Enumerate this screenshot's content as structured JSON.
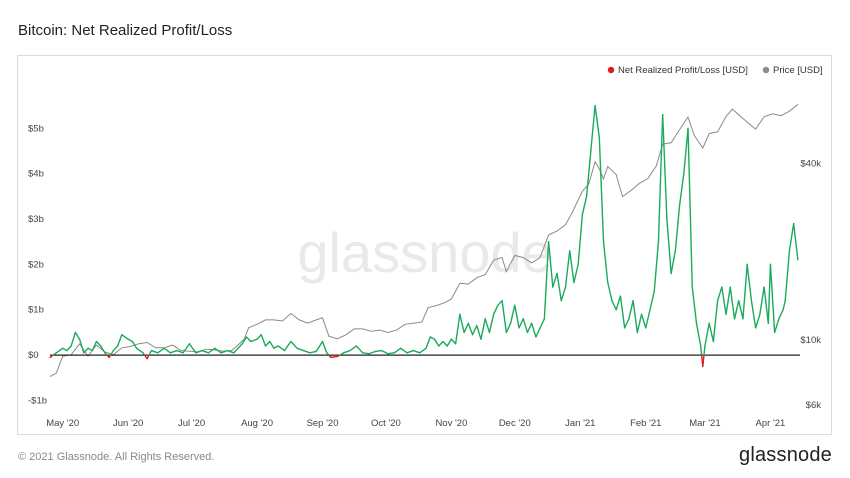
{
  "header": {
    "title": "Bitcoin: Net Realized Profit/Loss"
  },
  "footer": {
    "copyright": "© 2021 Glassnode. All Rights Reserved.",
    "brand": "glassnode"
  },
  "watermark": "glassnode",
  "colors": {
    "profit": "#1aaa5b",
    "loss": "#e11b1b",
    "price": "#8a8a8a",
    "zero_line": "#222222"
  },
  "chart_data": {
    "type": "line",
    "title": "Bitcoin: Net Realized Profit/Loss",
    "legend": {
      "placement": "top-right",
      "entries": [
        {
          "label": "Net Realized Profit/Loss [USD]",
          "color": "#e11b1b"
        },
        {
          "label": "Price [USD]",
          "color": "#8a8a8a"
        }
      ]
    },
    "y_left": {
      "ticks": [
        -1,
        0,
        1,
        2,
        3,
        4,
        5
      ],
      "tick_labels": [
        "-$1b",
        "$0",
        "$1b",
        "$2b",
        "$3b",
        "$4b",
        "$5b"
      ],
      "range": [
        -1.1,
        5.8
      ]
    },
    "y_right": {
      "scale": "log",
      "ticks": [
        6000,
        10000,
        40000
      ],
      "tick_labels": [
        "$6k",
        "$10k",
        "$40k"
      ],
      "range": [
        6000,
        70000
      ]
    },
    "x_axis": {
      "range": [
        "2020-04-25",
        "2021-04-15"
      ],
      "ticks": [
        {
          "date": "2020-05-01",
          "label": "May '20"
        },
        {
          "date": "2020-06-01",
          "label": "Jun '20"
        },
        {
          "date": "2020-07-01",
          "label": "Jul '20"
        },
        {
          "date": "2020-08-01",
          "label": "Aug '20"
        },
        {
          "date": "2020-09-01",
          "label": "Sep '20"
        },
        {
          "date": "2020-10-01",
          "label": "Oct '20"
        },
        {
          "date": "2020-11-01",
          "label": "Nov '20"
        },
        {
          "date": "2020-12-01",
          "label": "Dec '20"
        },
        {
          "date": "2021-01-01",
          "label": "Jan '21"
        },
        {
          "date": "2021-02-01",
          "label": "Feb '21"
        },
        {
          "date": "2021-03-01",
          "label": "Mar '21"
        },
        {
          "date": "2021-04-01",
          "label": "Apr '21"
        }
      ]
    },
    "series": [
      {
        "name": "Net Realized Profit/Loss [USD]",
        "unit": "USD billions",
        "points": [
          [
            "2020-04-25",
            -0.05
          ],
          [
            "2020-04-28",
            0.05
          ],
          [
            "2020-05-01",
            0.15
          ],
          [
            "2020-05-03",
            0.1
          ],
          [
            "2020-05-05",
            0.2
          ],
          [
            "2020-05-07",
            0.5
          ],
          [
            "2020-05-09",
            0.35
          ],
          [
            "2020-05-11",
            0.05
          ],
          [
            "2020-05-13",
            0.15
          ],
          [
            "2020-05-15",
            0.1
          ],
          [
            "2020-05-17",
            0.3
          ],
          [
            "2020-05-19",
            0.2
          ],
          [
            "2020-05-21",
            0.05
          ],
          [
            "2020-05-23",
            -0.05
          ],
          [
            "2020-05-25",
            0.1
          ],
          [
            "2020-05-27",
            0.2
          ],
          [
            "2020-05-29",
            0.45
          ],
          [
            "2020-06-01",
            0.35
          ],
          [
            "2020-06-03",
            0.3
          ],
          [
            "2020-06-05",
            0.15
          ],
          [
            "2020-06-08",
            0.05
          ],
          [
            "2020-06-10",
            -0.08
          ],
          [
            "2020-06-12",
            0.1
          ],
          [
            "2020-06-15",
            0.05
          ],
          [
            "2020-06-18",
            0.15
          ],
          [
            "2020-06-21",
            0.05
          ],
          [
            "2020-06-24",
            0.1
          ],
          [
            "2020-06-27",
            0.05
          ],
          [
            "2020-06-30",
            0.25
          ],
          [
            "2020-07-03",
            0.05
          ],
          [
            "2020-07-06",
            0.1
          ],
          [
            "2020-07-09",
            0.05
          ],
          [
            "2020-07-12",
            0.15
          ],
          [
            "2020-07-15",
            0.05
          ],
          [
            "2020-07-18",
            0.1
          ],
          [
            "2020-07-21",
            0.05
          ],
          [
            "2020-07-23",
            0.15
          ],
          [
            "2020-07-25",
            0.25
          ],
          [
            "2020-07-27",
            0.4
          ],
          [
            "2020-07-29",
            0.3
          ],
          [
            "2020-08-01",
            0.35
          ],
          [
            "2020-08-03",
            0.45
          ],
          [
            "2020-08-05",
            0.2
          ],
          [
            "2020-08-07",
            0.3
          ],
          [
            "2020-08-09",
            0.15
          ],
          [
            "2020-08-11",
            0.2
          ],
          [
            "2020-08-14",
            0.1
          ],
          [
            "2020-08-17",
            0.3
          ],
          [
            "2020-08-20",
            0.15
          ],
          [
            "2020-08-23",
            0.1
          ],
          [
            "2020-08-26",
            0.05
          ],
          [
            "2020-08-29",
            0.08
          ],
          [
            "2020-09-01",
            0.3
          ],
          [
            "2020-09-03",
            0.05
          ],
          [
            "2020-09-05",
            -0.05
          ],
          [
            "2020-09-08",
            -0.03
          ],
          [
            "2020-09-11",
            0.05
          ],
          [
            "2020-09-14",
            0.1
          ],
          [
            "2020-09-17",
            0.2
          ],
          [
            "2020-09-20",
            0.05
          ],
          [
            "2020-09-23",
            0.03
          ],
          [
            "2020-09-26",
            0.08
          ],
          [
            "2020-09-29",
            0.1
          ],
          [
            "2020-10-02",
            0.03
          ],
          [
            "2020-10-05",
            0.05
          ],
          [
            "2020-10-08",
            0.15
          ],
          [
            "2020-10-11",
            0.05
          ],
          [
            "2020-10-14",
            0.1
          ],
          [
            "2020-10-17",
            0.05
          ],
          [
            "2020-10-20",
            0.15
          ],
          [
            "2020-10-22",
            0.4
          ],
          [
            "2020-10-24",
            0.35
          ],
          [
            "2020-10-26",
            0.2
          ],
          [
            "2020-10-28",
            0.3
          ],
          [
            "2020-10-30",
            0.2
          ],
          [
            "2020-11-01",
            0.35
          ],
          [
            "2020-11-03",
            0.25
          ],
          [
            "2020-11-05",
            0.9
          ],
          [
            "2020-11-07",
            0.5
          ],
          [
            "2020-11-09",
            0.7
          ],
          [
            "2020-11-11",
            0.45
          ],
          [
            "2020-11-13",
            0.65
          ],
          [
            "2020-11-15",
            0.35
          ],
          [
            "2020-11-17",
            0.8
          ],
          [
            "2020-11-19",
            0.5
          ],
          [
            "2020-11-21",
            0.9
          ],
          [
            "2020-11-23",
            1.1
          ],
          [
            "2020-11-25",
            1.2
          ],
          [
            "2020-11-27",
            0.5
          ],
          [
            "2020-11-29",
            0.7
          ],
          [
            "2020-12-01",
            1.1
          ],
          [
            "2020-12-03",
            0.6
          ],
          [
            "2020-12-05",
            0.8
          ],
          [
            "2020-12-07",
            0.5
          ],
          [
            "2020-12-09",
            0.7
          ],
          [
            "2020-12-11",
            0.4
          ],
          [
            "2020-12-13",
            0.6
          ],
          [
            "2020-12-15",
            0.8
          ],
          [
            "2020-12-17",
            2.5
          ],
          [
            "2020-12-19",
            1.5
          ],
          [
            "2020-12-21",
            1.8
          ],
          [
            "2020-12-23",
            1.2
          ],
          [
            "2020-12-25",
            1.5
          ],
          [
            "2020-12-27",
            2.3
          ],
          [
            "2020-12-29",
            1.6
          ],
          [
            "2020-12-31",
            2.0
          ],
          [
            "2021-01-02",
            3.1
          ],
          [
            "2021-01-04",
            3.5
          ],
          [
            "2021-01-06",
            4.5
          ],
          [
            "2021-01-08",
            5.5
          ],
          [
            "2021-01-10",
            4.8
          ],
          [
            "2021-01-12",
            2.5
          ],
          [
            "2021-01-14",
            1.6
          ],
          [
            "2021-01-16",
            1.2
          ],
          [
            "2021-01-18",
            1.0
          ],
          [
            "2021-01-20",
            1.3
          ],
          [
            "2021-01-22",
            0.6
          ],
          [
            "2021-01-24",
            0.8
          ],
          [
            "2021-01-26",
            1.2
          ],
          [
            "2021-01-28",
            0.5
          ],
          [
            "2021-01-30",
            0.9
          ],
          [
            "2021-02-01",
            0.6
          ],
          [
            "2021-02-03",
            1.0
          ],
          [
            "2021-02-05",
            1.4
          ],
          [
            "2021-02-07",
            2.5
          ],
          [
            "2021-02-09",
            5.3
          ],
          [
            "2021-02-11",
            3.0
          ],
          [
            "2021-02-13",
            1.8
          ],
          [
            "2021-02-15",
            2.3
          ],
          [
            "2021-02-17",
            3.3
          ],
          [
            "2021-02-19",
            4.0
          ],
          [
            "2021-02-21",
            5.0
          ],
          [
            "2021-02-23",
            1.5
          ],
          [
            "2021-02-25",
            0.7
          ],
          [
            "2021-02-27",
            0.2
          ],
          [
            "2021-02-28",
            -0.25
          ],
          [
            "2021-03-01",
            0.2
          ],
          [
            "2021-03-03",
            0.7
          ],
          [
            "2021-03-05",
            0.3
          ],
          [
            "2021-03-07",
            1.2
          ],
          [
            "2021-03-09",
            1.5
          ],
          [
            "2021-03-11",
            0.9
          ],
          [
            "2021-03-13",
            1.5
          ],
          [
            "2021-03-15",
            0.8
          ],
          [
            "2021-03-17",
            1.2
          ],
          [
            "2021-03-19",
            0.8
          ],
          [
            "2021-03-21",
            2.0
          ],
          [
            "2021-03-23",
            1.2
          ],
          [
            "2021-03-25",
            0.6
          ],
          [
            "2021-03-27",
            0.9
          ],
          [
            "2021-03-29",
            1.5
          ],
          [
            "2021-03-31",
            0.7
          ],
          [
            "2021-04-01",
            2.0
          ],
          [
            "2021-04-03",
            0.5
          ],
          [
            "2021-04-05",
            0.8
          ],
          [
            "2021-04-07",
            1.0
          ],
          [
            "2021-04-08",
            1.2
          ],
          [
            "2021-04-10",
            2.3
          ],
          [
            "2021-04-12",
            2.9
          ],
          [
            "2021-04-14",
            2.1
          ]
        ]
      },
      {
        "name": "Price [USD]",
        "unit": "USD",
        "points": [
          [
            "2020-04-25",
            7500
          ],
          [
            "2020-04-28",
            7700
          ],
          [
            "2020-05-01",
            8800
          ],
          [
            "2020-05-05",
            8900
          ],
          [
            "2020-05-09",
            9700
          ],
          [
            "2020-05-13",
            8800
          ],
          [
            "2020-05-17",
            9600
          ],
          [
            "2020-05-21",
            9100
          ],
          [
            "2020-05-25",
            8900
          ],
          [
            "2020-05-29",
            9400
          ],
          [
            "2020-06-02",
            9500
          ],
          [
            "2020-06-06",
            9700
          ],
          [
            "2020-06-10",
            9800
          ],
          [
            "2020-06-14",
            9400
          ],
          [
            "2020-06-18",
            9400
          ],
          [
            "2020-06-22",
            9600
          ],
          [
            "2020-06-26",
            9200
          ],
          [
            "2020-06-30",
            9150
          ],
          [
            "2020-07-04",
            9100
          ],
          [
            "2020-07-08",
            9300
          ],
          [
            "2020-07-12",
            9250
          ],
          [
            "2020-07-16",
            9150
          ],
          [
            "2020-07-20",
            9200
          ],
          [
            "2020-07-23",
            9600
          ],
          [
            "2020-07-26",
            10100
          ],
          [
            "2020-07-28",
            11000
          ],
          [
            "2020-08-01",
            11300
          ],
          [
            "2020-08-05",
            11700
          ],
          [
            "2020-08-09",
            11700
          ],
          [
            "2020-08-13",
            11600
          ],
          [
            "2020-08-17",
            12300
          ],
          [
            "2020-08-21",
            11700
          ],
          [
            "2020-08-25",
            11400
          ],
          [
            "2020-08-29",
            11700
          ],
          [
            "2020-09-01",
            11900
          ],
          [
            "2020-09-04",
            10300
          ],
          [
            "2020-09-08",
            10100
          ],
          [
            "2020-09-12",
            10400
          ],
          [
            "2020-09-16",
            10900
          ],
          [
            "2020-09-20",
            10900
          ],
          [
            "2020-09-24",
            10700
          ],
          [
            "2020-09-28",
            10800
          ],
          [
            "2020-10-02",
            10600
          ],
          [
            "2020-10-06",
            10800
          ],
          [
            "2020-10-10",
            11300
          ],
          [
            "2020-10-14",
            11400
          ],
          [
            "2020-10-18",
            11500
          ],
          [
            "2020-10-21",
            12900
          ],
          [
            "2020-10-25",
            13100
          ],
          [
            "2020-10-29",
            13400
          ],
          [
            "2020-11-01",
            13800
          ],
          [
            "2020-11-05",
            15600
          ],
          [
            "2020-11-09",
            15500
          ],
          [
            "2020-11-13",
            16300
          ],
          [
            "2020-11-17",
            16700
          ],
          [
            "2020-11-21",
            18700
          ],
          [
            "2020-11-25",
            19100
          ],
          [
            "2020-11-27",
            17100
          ],
          [
            "2020-12-01",
            19400
          ],
          [
            "2020-12-05",
            19100
          ],
          [
            "2020-12-09",
            18300
          ],
          [
            "2020-12-13",
            19100
          ],
          [
            "2020-12-17",
            22800
          ],
          [
            "2020-12-21",
            23500
          ],
          [
            "2020-12-25",
            24700
          ],
          [
            "2020-12-28",
            27000
          ],
          [
            "2021-01-02",
            32100
          ],
          [
            "2021-01-05",
            34000
          ],
          [
            "2021-01-08",
            40500
          ],
          [
            "2021-01-10",
            38300
          ],
          [
            "2021-01-12",
            35400
          ],
          [
            "2021-01-14",
            39000
          ],
          [
            "2021-01-18",
            36600
          ],
          [
            "2021-01-21",
            30800
          ],
          [
            "2021-01-25",
            32300
          ],
          [
            "2021-01-29",
            34200
          ],
          [
            "2021-02-02",
            35500
          ],
          [
            "2021-02-06",
            39200
          ],
          [
            "2021-02-09",
            46500
          ],
          [
            "2021-02-13",
            47000
          ],
          [
            "2021-02-17",
            52100
          ],
          [
            "2021-02-21",
            57500
          ],
          [
            "2021-02-24",
            49700
          ],
          [
            "2021-02-28",
            45100
          ],
          [
            "2021-03-03",
            50500
          ],
          [
            "2021-03-07",
            51200
          ],
          [
            "2021-03-11",
            57800
          ],
          [
            "2021-03-14",
            61200
          ],
          [
            "2021-03-18",
            57700
          ],
          [
            "2021-03-22",
            54500
          ],
          [
            "2021-03-25",
            52300
          ],
          [
            "2021-03-29",
            57600
          ],
          [
            "2021-04-02",
            59000
          ],
          [
            "2021-04-06",
            58100
          ],
          [
            "2021-04-10",
            60200
          ],
          [
            "2021-04-14",
            63500
          ]
        ]
      }
    ]
  }
}
